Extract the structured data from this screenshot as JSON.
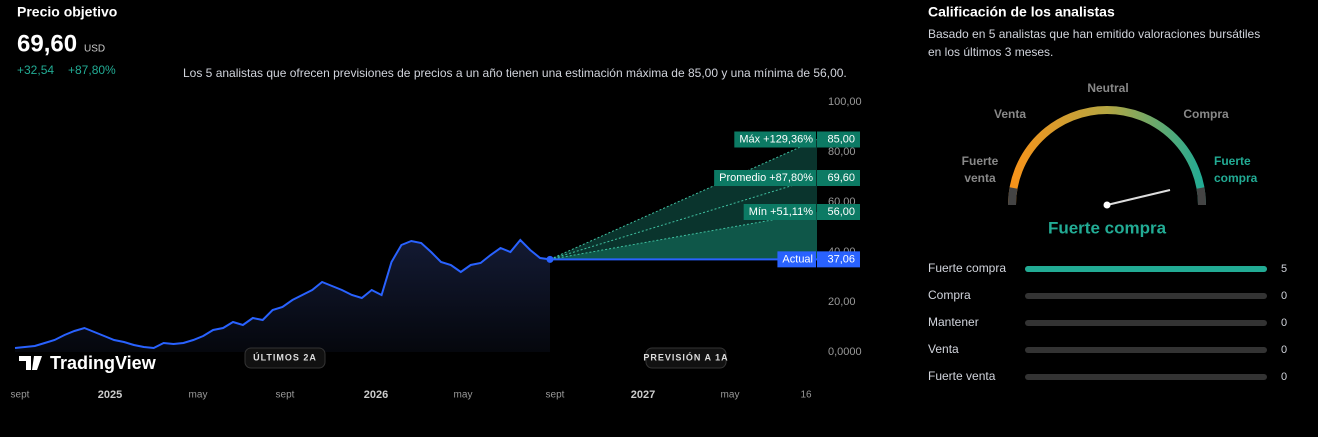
{
  "header": {
    "title": "Precio objetivo",
    "price": "69,60",
    "currency": "USD",
    "change": "+32,54",
    "change_pct": "+87,80%",
    "description": "Los 5 analistas que ofrecen previsiones de precios a un año tienen una estimación máxima de 85,00 y una mínima de 56,00."
  },
  "chart_data": {
    "type": "line",
    "color": "#2962ff",
    "values": [
      1.6,
      2,
      2.4,
      3.6,
      4.8,
      6.8,
      8.4,
      9.6,
      8,
      6.4,
      4.8,
      4,
      2.8,
      2,
      1.6,
      3.6,
      3.2,
      3.6,
      4.8,
      6.4,
      8.8,
      9.6,
      12,
      10.8,
      13.6,
      12.8,
      16.8,
      18,
      20.8,
      22.8,
      24.8,
      28,
      26.4,
      24.8,
      22.8,
      21.6,
      24.8,
      22.8,
      36,
      42.8,
      44.4,
      43.6,
      40,
      36,
      34.8,
      32,
      34.8,
      35.6,
      38.8,
      41.6,
      40,
      44.8,
      40.8,
      37.6,
      37.06
    ],
    "x_labels": [
      "sept",
      "2025",
      "may",
      "sept",
      "2026",
      "may",
      "sept",
      "2027",
      "may",
      "16"
    ],
    "ylim": [
      0,
      100
    ],
    "yticks": [
      {
        "value": 0,
        "label": "0,0000"
      },
      {
        "value": 20,
        "label": "20,00"
      },
      {
        "value": 40,
        "label": "40,00"
      },
      {
        "value": 60,
        "label": "60,00"
      },
      {
        "value": 80,
        "label": "80,00"
      },
      {
        "value": 100,
        "label": "100,00"
      }
    ],
    "actual": {
      "name": "Actual",
      "value": 37.06,
      "value_label": "37,06"
    },
    "forecast": [
      {
        "name": "Máx +129,36%",
        "value": 85,
        "value_label": "85,00"
      },
      {
        "name": "Promedio +87,80%",
        "value": 69.6,
        "value_label": "69,60"
      },
      {
        "name": "Mín +51,11%",
        "value": 56,
        "value_label": "56,00"
      }
    ],
    "buttons": [
      "ÚLTIMOS 2A",
      "PREVISIÓN A 1A"
    ],
    "brand": "TradingView"
  },
  "ratings": {
    "title": "Calificación de los analistas",
    "subtitle": [
      "Basado en 5 analistas que han emitido valoraciones bursátiles",
      "en los últimos 3 meses."
    ],
    "gauge_labels": [
      "Fuerte venta",
      "Venta",
      "Neutral",
      "Compra",
      "Fuerte compra"
    ],
    "result": "Fuerte compra",
    "color": "#22ab94",
    "xlim": [
      0,
      5
    ],
    "rows": [
      {
        "name": "Fuerte compra",
        "count": 5
      },
      {
        "name": "Compra",
        "count": 0
      },
      {
        "name": "Mantener",
        "count": 0
      },
      {
        "name": "Venta",
        "count": 0
      },
      {
        "name": "Fuerte venta",
        "count": 0
      }
    ]
  }
}
